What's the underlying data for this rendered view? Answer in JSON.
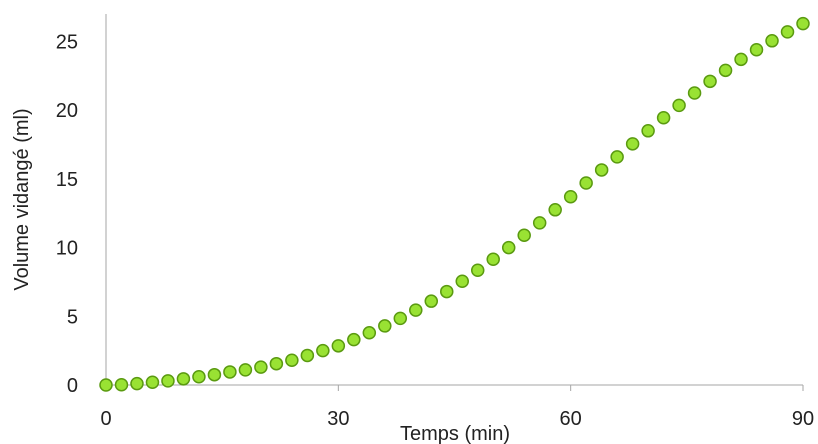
{
  "chart_data": {
    "type": "scatter",
    "title": "",
    "xlabel": "Temps (min)",
    "ylabel": "Volume vidangé (ml)",
    "xlim": [
      0,
      90
    ],
    "ylim": [
      0,
      27
    ],
    "xticks": [
      0,
      30,
      60,
      90
    ],
    "yticks": [
      0,
      5,
      10,
      15,
      20,
      25
    ],
    "grid": false,
    "legend": "none",
    "marker_fill": "#99e233",
    "marker_edge": "#5a9a10",
    "axis_color": "#a6a6a6",
    "series": [
      {
        "x": [
          0,
          2,
          4,
          6,
          8,
          10,
          12,
          14,
          16,
          18,
          20,
          22,
          24,
          26,
          28,
          30,
          32,
          34,
          36,
          38,
          40,
          42,
          44,
          46,
          48,
          50,
          52,
          54,
          56,
          58,
          60,
          62,
          64,
          66,
          68,
          70,
          72,
          74,
          76,
          78,
          80,
          82,
          84,
          86,
          88,
          90
        ],
        "y": [
          0,
          0.02,
          0.1,
          0.2,
          0.3,
          0.45,
          0.6,
          0.75,
          0.95,
          1.1,
          1.3,
          1.55,
          1.8,
          2.15,
          2.5,
          2.85,
          3.3,
          3.8,
          4.3,
          4.85,
          5.45,
          6.1,
          6.8,
          7.55,
          8.35,
          9.15,
          10.0,
          10.9,
          11.8,
          12.75,
          13.7,
          14.7,
          15.65,
          16.6,
          17.55,
          18.5,
          19.45,
          20.35,
          21.25,
          22.1,
          22.9,
          23.7,
          24.4,
          25.05,
          25.7,
          26.3
        ]
      }
    ]
  }
}
